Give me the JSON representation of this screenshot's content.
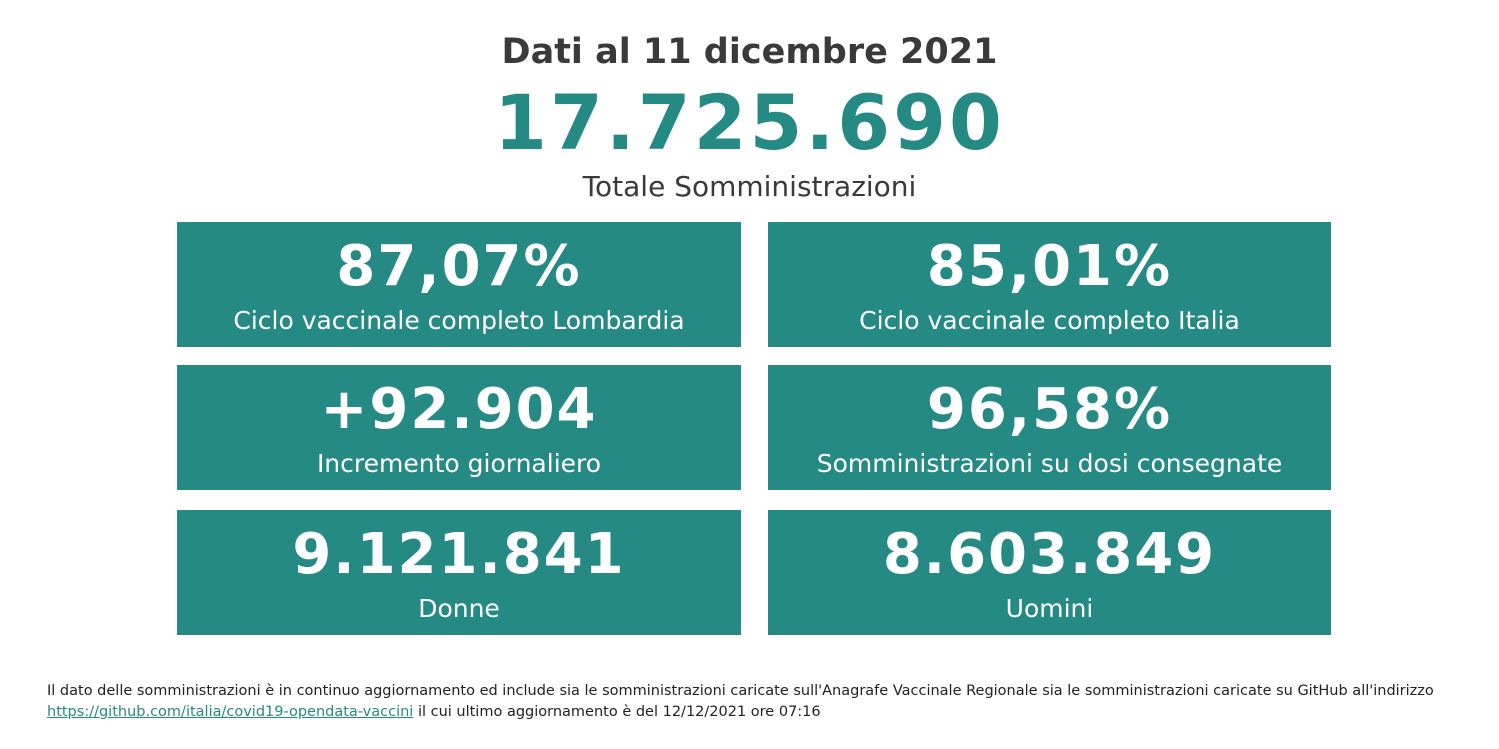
{
  "header": {
    "date": "Dati al 11 dicembre 2021",
    "total_value": "17.725.690",
    "total_label": "Totale Somministrazioni"
  },
  "cards": [
    {
      "value": "87,07%",
      "label": "Ciclo vaccinale completo Lombardia"
    },
    {
      "value": "85,01%",
      "label": "Ciclo vaccinale completo Italia"
    },
    {
      "value": "+92.904",
      "label": "Incremento giornaliero"
    },
    {
      "value": "96,58%",
      "label": "Somministrazioni su dosi consegnate"
    },
    {
      "value": "9.121.841",
      "label": "Donne"
    },
    {
      "value": "8.603.849",
      "label": "Uomini"
    }
  ],
  "footnote": {
    "text_before": "Il dato delle somministrazioni è in continuo aggiornamento ed include sia le somministrazioni caricate sull'Anagrafe Vaccinale Regionale sia le somministrazioni caricate su GitHub all'indirizzo",
    "link": "https://github.com/italia/covid19-opendata-vaccini",
    "text_after": "il cui ultimo aggiornamento è del 12/12/2021 ore 07:16"
  },
  "colors": {
    "accent": "#268a84",
    "text": "#3a3a3a"
  }
}
